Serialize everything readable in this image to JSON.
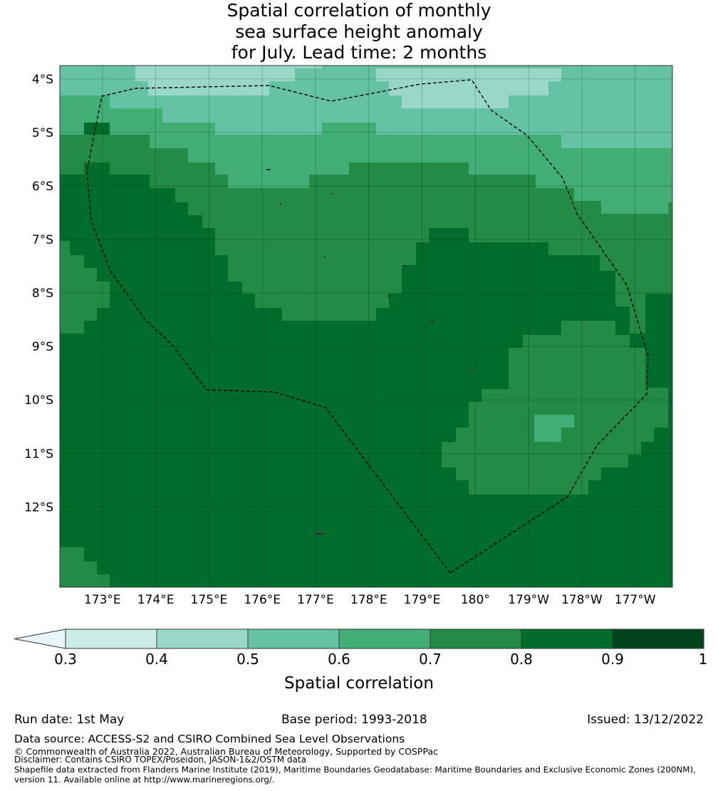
{
  "title": {
    "line1": "Spatial correlation of monthly",
    "line2": "sea surface height anomaly",
    "line3": "for July. Lead time: 2 months"
  },
  "map": {
    "lat_labels": [
      "4°S",
      "5°S",
      "6°S",
      "7°S",
      "8°S",
      "9°S",
      "10°S",
      "11°S",
      "12°S"
    ],
    "lon_labels": [
      "173°E",
      "174°E",
      "175°E",
      "176°E",
      "177°E",
      "178°E",
      "179°E",
      "180°",
      "179°W",
      "178°W",
      "177°W"
    ],
    "lat_range": [
      -13.5,
      -3.75
    ],
    "lon_range": [
      172.2,
      183.7
    ]
  },
  "colorbar": {
    "title": "Spatial correlation",
    "tick_labels": [
      "0.3",
      "0.4",
      "0.5",
      "0.6",
      "0.7",
      "0.8",
      "0.9",
      "1"
    ],
    "colors": [
      "#ccece6",
      "#99d8c9",
      "#66c2a4",
      "#41ae76",
      "#238b45",
      "#006d2c",
      "#00441b"
    ],
    "extend_color": "#e5f5f9"
  },
  "footer": {
    "run_date": "Run date: 1st May",
    "base_period": "Base period: 1993-2018",
    "issued": "Issued: 13/12/2022",
    "data_source": "Data source: ACCESS-S2 and CSIRO Combined Sea Level Observations",
    "copyright": "© Commonwealth of Australia 2022, Australian Bureau of Meteorology, Supported by COSPPac",
    "disclaimer": "Disclaimer: Contains CSIRO TOPEX/Poseidon, JASON-1&2/OSTM data",
    "shapefile_line1": "Shapefile data extracted from Flanders Marine Institute (2019), Maritime Boundaries Geodatabase: Maritime Boundaries and Exclusive Economic Zones (200NM),",
    "shapefile_line2": "version 11. Available online at http://www.marineregions.org/."
  }
}
